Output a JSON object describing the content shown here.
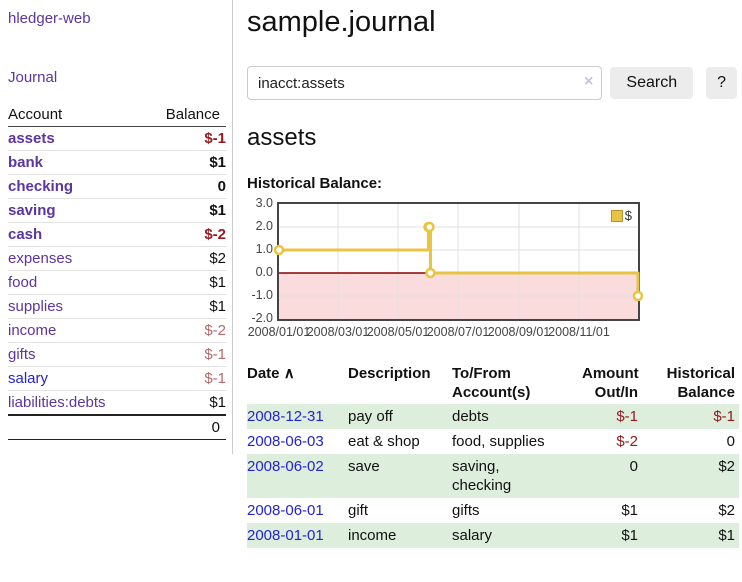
{
  "app": {
    "brand": "hledger-web",
    "nav_journal": "Journal"
  },
  "sidebar": {
    "headers": {
      "account": "Account",
      "balance": "Balance"
    },
    "accounts": [
      {
        "name": "assets",
        "balance": "$-1",
        "indent": 0,
        "bold": true,
        "neg": "dark"
      },
      {
        "name": "bank",
        "balance": "$1",
        "indent": 1,
        "bold": true,
        "neg": null
      },
      {
        "name": "checking",
        "balance": "0",
        "indent": 2,
        "bold": true,
        "neg": null
      },
      {
        "name": "saving",
        "balance": "$1",
        "indent": 2,
        "bold": true,
        "neg": null
      },
      {
        "name": "cash",
        "balance": "$-2",
        "indent": 1,
        "bold": true,
        "neg": "dark"
      },
      {
        "name": "expenses",
        "balance": "$2",
        "indent": 0,
        "bold": false,
        "neg": null
      },
      {
        "name": "food",
        "balance": "$1",
        "indent": 1,
        "bold": false,
        "neg": null
      },
      {
        "name": "supplies",
        "balance": "$1",
        "indent": 1,
        "bold": false,
        "neg": null
      },
      {
        "name": "income",
        "balance": "$-2",
        "indent": 0,
        "bold": false,
        "neg": "muted"
      },
      {
        "name": "gifts",
        "balance": "$-1",
        "indent": 1,
        "bold": false,
        "neg": "muted"
      },
      {
        "name": "salary",
        "balance": "$-1",
        "indent": 1,
        "bold": false,
        "neg": "muted",
        "blue": true
      },
      {
        "name": "liabilities:debts",
        "balance": "$1",
        "indent": 0,
        "bold": false,
        "neg": null
      }
    ],
    "total": "0"
  },
  "main": {
    "title": "sample.journal",
    "search": {
      "value": "inacct:assets",
      "clear_icon": "×",
      "button": "Search",
      "help_button": "?"
    },
    "account_heading": "assets",
    "chart_label": "Historical Balance:"
  },
  "chart_data": {
    "type": "line",
    "step": true,
    "title": "Historical Balance of assets",
    "series": [
      {
        "name": "$",
        "points": [
          [
            "2008-01-01",
            1.0
          ],
          [
            "2008-06-01",
            2.0
          ],
          [
            "2008-06-02",
            2.0
          ],
          [
            "2008-06-03",
            0.0
          ],
          [
            "2008-12-31",
            -1.0
          ]
        ]
      }
    ],
    "x_range": [
      "2008-01-01",
      "2008-12-31"
    ],
    "ylim": [
      -2.0,
      3.0
    ],
    "x_ticks": [
      {
        "d": "2008-01-01",
        "label": "2008/01/01"
      },
      {
        "d": "2008-03-01",
        "label": "2008/03/01"
      },
      {
        "d": "2008-05-01",
        "label": "2008/05/01"
      },
      {
        "d": "2008-07-01",
        "label": "2008/07/01"
      },
      {
        "d": "2008-09-01",
        "label": "2008/09/01"
      },
      {
        "d": "2008-11-01",
        "label": "2008/11/01"
      }
    ],
    "y_ticks": [
      {
        "v": 3,
        "label": "3.0"
      },
      {
        "v": 2,
        "label": "2.0"
      },
      {
        "v": 1,
        "label": "1.0"
      },
      {
        "v": 0,
        "label": "0.0"
      },
      {
        "v": -1,
        "label": "-1.0"
      },
      {
        "v": -2,
        "label": "-2.0"
      }
    ],
    "legend": {
      "label": "$",
      "position": "top-right"
    },
    "negative_region_shaded": true,
    "grid": true
  },
  "register": {
    "headers": {
      "date": "Date",
      "sort_icon": "∧",
      "description": "Description",
      "account_line1": "To/From",
      "account_line2": "Account(s)",
      "amount_line1": "Amount",
      "amount_line2": "Out/In",
      "balance_line1": "Historical",
      "balance_line2": "Balance"
    },
    "rows": [
      {
        "date": "2008-12-31",
        "description": "pay off",
        "accounts": "debts",
        "amount": "$-1",
        "balance": "$-1"
      },
      {
        "date": "2008-06-03",
        "description": "eat & shop",
        "accounts": "food, supplies",
        "amount": "$-2",
        "balance": "0"
      },
      {
        "date": "2008-06-02",
        "description": "save",
        "accounts": "saving,\nchecking",
        "amount": "0",
        "balance": "$2"
      },
      {
        "date": "2008-06-01",
        "description": "gift",
        "accounts": "gifts",
        "amount": "$1",
        "balance": "$2"
      },
      {
        "date": "2008-01-01",
        "description": "income",
        "accounts": "salary",
        "amount": "$1",
        "balance": "$1"
      }
    ]
  },
  "colors": {
    "purple": "#5c35a0",
    "blue": "#2323d4",
    "neg_dark": "#96181c",
    "neg_muted": "#b46a6a",
    "row_green": "#ddeedd",
    "chart_line": "#e9c343",
    "chart_point_fill": "#ffffff",
    "chart_neg_fill": "#fbdcdc",
    "zero_line": "#8b0000",
    "grid": "#e0e0e0",
    "plot_border": "#444444"
  }
}
